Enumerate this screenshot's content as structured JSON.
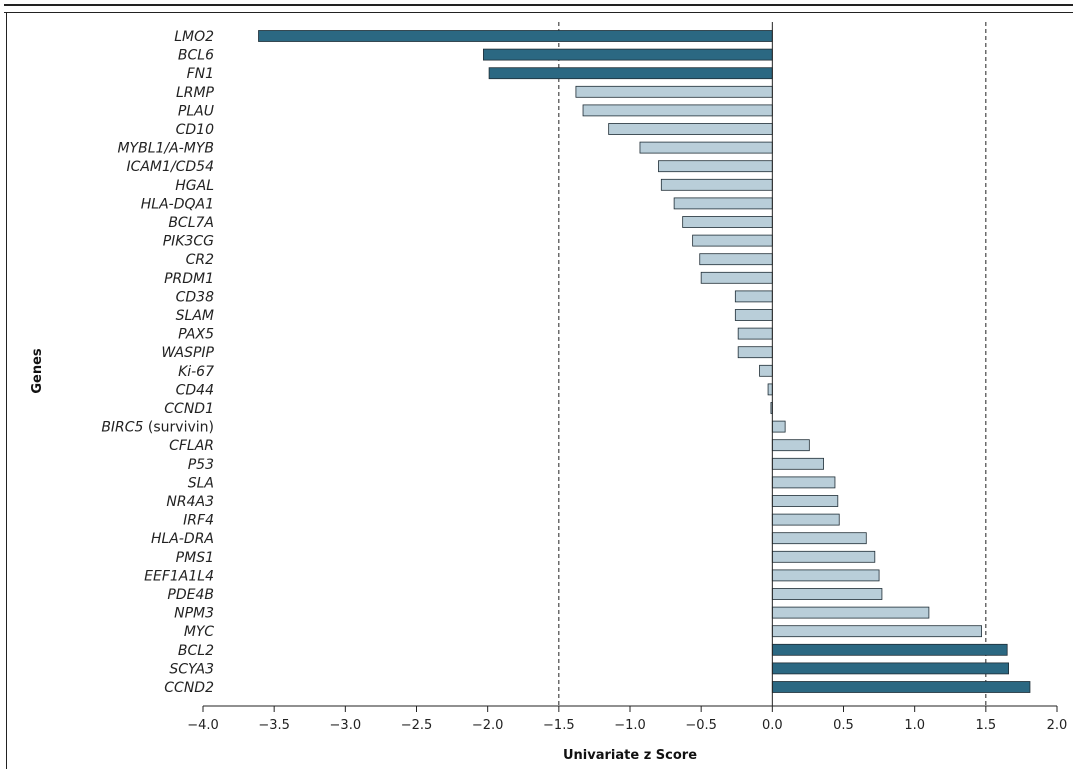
{
  "chart_data": {
    "type": "bar",
    "orientation": "horizontal",
    "xlabel": "Univariate z Score",
    "ylabel": "Genes",
    "xlim": [
      -4.0,
      2.0
    ],
    "xticks": [
      "−4.0",
      "−3.5",
      "−3.0",
      "−2.5",
      "−2.0",
      "−1.5",
      "−1.0",
      "−0.5",
      "0.0",
      "0.5",
      "1.0",
      "1.5",
      "2.0"
    ],
    "xtick_values": [
      -4.0,
      -3.5,
      -3.0,
      -2.5,
      -2.0,
      -1.5,
      -1.0,
      -0.5,
      0.0,
      0.5,
      1.0,
      1.5,
      2.0
    ],
    "reference_lines": [
      -1.5,
      1.5
    ],
    "grid": false,
    "colors": {
      "significant": "#2b6882",
      "other": "#b9ced9",
      "edge": "#1f2d36"
    },
    "categories": [
      "LMO2",
      "BCL6",
      "FN1",
      "LRMP",
      "PLAU",
      "CD10",
      "MYBL1/A-MYB",
      "ICAM1/CD54",
      "HGAL",
      "HLA-DQA1",
      "BCL7A",
      "PIK3CG",
      "CR2",
      "PRDM1",
      "CD38",
      "SLAM",
      "PAX5",
      "WASPIP",
      "Ki-67",
      "CD44",
      "CCND1",
      "BIRC5",
      "CFLAR",
      "P53",
      "SLA",
      "NR4A3",
      "IRF4",
      "HLA-DRA",
      "PMS1",
      "EEF1A1L4",
      "PDE4B",
      "NPM3",
      "MYC",
      "BCL2",
      "SCYA3",
      "CCND2"
    ],
    "label_suffix": {
      "BIRC5": " (survivin)"
    },
    "values": [
      -3.61,
      -2.03,
      -1.99,
      -1.38,
      -1.33,
      -1.15,
      -0.93,
      -0.8,
      -0.78,
      -0.69,
      -0.63,
      -0.56,
      -0.51,
      -0.5,
      -0.26,
      -0.26,
      -0.24,
      -0.24,
      -0.09,
      -0.03,
      -0.01,
      0.09,
      0.26,
      0.36,
      0.44,
      0.46,
      0.47,
      0.66,
      0.72,
      0.75,
      0.77,
      1.1,
      1.47,
      1.65,
      1.66,
      1.81
    ],
    "significant": [
      true,
      true,
      true,
      false,
      false,
      false,
      false,
      false,
      false,
      false,
      false,
      false,
      false,
      false,
      false,
      false,
      false,
      false,
      false,
      false,
      false,
      false,
      false,
      false,
      false,
      false,
      false,
      false,
      false,
      false,
      false,
      false,
      false,
      true,
      true,
      true
    ]
  }
}
